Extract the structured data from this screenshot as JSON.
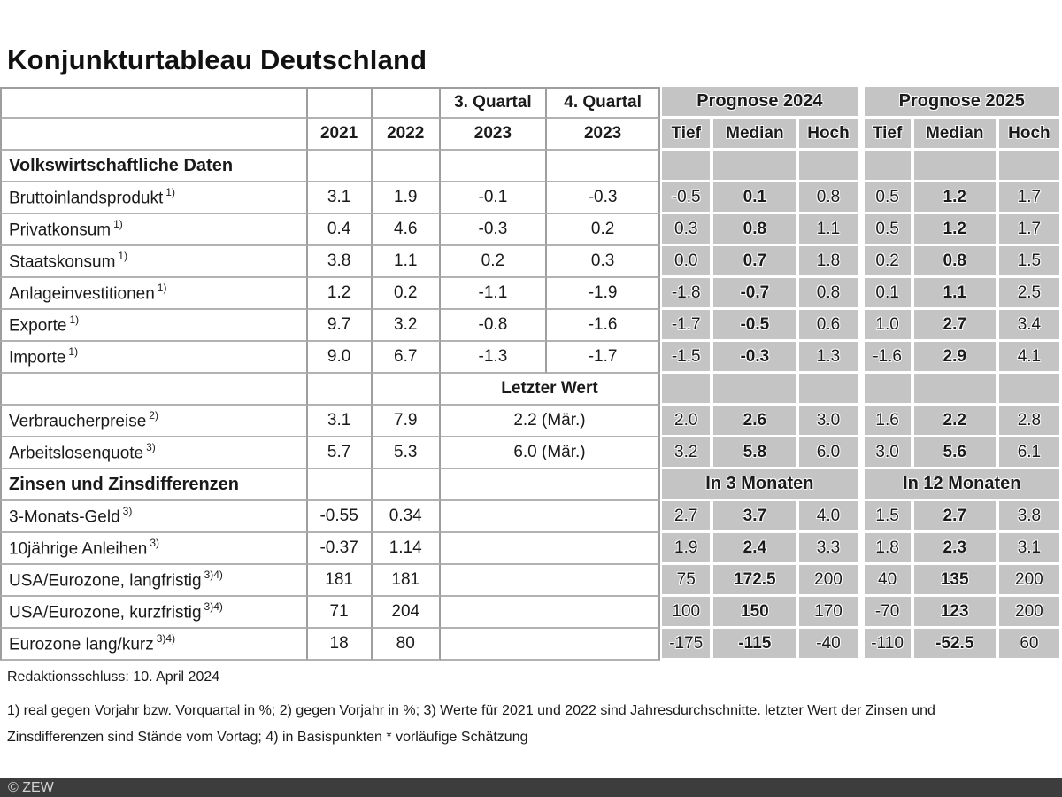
{
  "title": "Konjunkturtableau Deutschland",
  "colors": {
    "forecast_cell_gray": "#c4c4c4",
    "grid_line": "#9e9e9e",
    "copyright_bar": "#3d3d3d",
    "text": "#1a1a1a"
  },
  "chart_data": {
    "type": "table",
    "title": "Konjunkturtableau Deutschland",
    "header": {
      "q3_label": "3. Quartal",
      "q4_label": "4. Quartal",
      "q3_year": "2023",
      "q4_year": "2023",
      "y2021": "2021",
      "y2022": "2022",
      "prognose2024": "Prognose 2024",
      "prognose2025": "Prognose 2025",
      "tief": "Tief",
      "median": "Median",
      "hoch": "Hoch"
    },
    "section1": "Volkswirtschaftliche Daten",
    "vw_rows": [
      {
        "label": "Bruttoinlandsprodukt",
        "sup": "1)",
        "y2021": "3.1",
        "y2022": "1.9",
        "q3": "-0.1",
        "q4": "-0.3",
        "f24": {
          "tief": "-0.5",
          "median": "0.1",
          "hoch": "0.8"
        },
        "f25": {
          "tief": "0.5",
          "median": "1.2",
          "hoch": "1.7"
        }
      },
      {
        "label": "Privatkonsum",
        "sup": "1)",
        "y2021": "0.4",
        "y2022": "4.6",
        "q3": "-0.3",
        "q4": "0.2",
        "f24": {
          "tief": "0.3",
          "median": "0.8",
          "hoch": "1.1"
        },
        "f25": {
          "tief": "0.5",
          "median": "1.2",
          "hoch": "1.7"
        }
      },
      {
        "label": "Staatskonsum",
        "sup": "1)",
        "y2021": "3.8",
        "y2022": "1.1",
        "q3": "0.2",
        "q4": "0.3",
        "f24": {
          "tief": "0.0",
          "median": "0.7",
          "hoch": "1.8"
        },
        "f25": {
          "tief": "0.2",
          "median": "0.8",
          "hoch": "1.5"
        }
      },
      {
        "label": "Anlageinvestitionen",
        "sup": "1)",
        "y2021": "1.2",
        "y2022": "0.2",
        "q3": "-1.1",
        "q4": "-1.9",
        "f24": {
          "tief": "-1.8",
          "median": "-0.7",
          "hoch": "0.8"
        },
        "f25": {
          "tief": "0.1",
          "median": "1.1",
          "hoch": "2.5"
        }
      },
      {
        "label": "Exporte",
        "sup": "1)",
        "y2021": "9.7",
        "y2022": "3.2",
        "q3": "-0.8",
        "q4": "-1.6",
        "f24": {
          "tief": "-1.7",
          "median": "-0.5",
          "hoch": "0.6"
        },
        "f25": {
          "tief": "1.0",
          "median": "2.7",
          "hoch": "3.4"
        }
      },
      {
        "label": "Importe",
        "sup": "1)",
        "y2021": "9.0",
        "y2022": "6.7",
        "q3": "-1.3",
        "q4": "-1.7",
        "f24": {
          "tief": "-1.5",
          "median": "-0.3",
          "hoch": "1.3"
        },
        "f25": {
          "tief": "-1.6",
          "median": "2.9",
          "hoch": "4.1"
        }
      }
    ],
    "letzter_wert_label": "Letzter Wert",
    "price_rows": [
      {
        "label": "Verbraucherpreise",
        "sup": "2)",
        "y2021": "3.1",
        "y2022": "7.9",
        "last": "2.2 (Mär.)",
        "f24": {
          "tief": "2.0",
          "median": "2.6",
          "hoch": "3.0"
        },
        "f25": {
          "tief": "1.6",
          "median": "2.2",
          "hoch": "2.8"
        }
      },
      {
        "label": "Arbeitslosenquote",
        "sup": "3)",
        "y2021": "5.7",
        "y2022": "5.3",
        "last": "6.0 (Mär.)",
        "f24": {
          "tief": "3.2",
          "median": "5.8",
          "hoch": "6.0"
        },
        "f25": {
          "tief": "3.0",
          "median": "5.6",
          "hoch": "6.1"
        }
      }
    ],
    "section2": "Zinsen und Zinsdifferenzen",
    "in3_label": "In 3 Monaten",
    "in12_label": "In 12 Monaten",
    "interest_rows": [
      {
        "label": "3-Monats-Geld",
        "sup": "3)",
        "y2021": "-0.55",
        "y2022": "0.34",
        "fc3m": {
          "tief": "2.7",
          "median": "3.7",
          "hoch": "4.0"
        },
        "fc12m": {
          "tief": "1.5",
          "median": "2.7",
          "hoch": "3.8"
        }
      },
      {
        "label": "10jährige Anleihen",
        "sup": "3)",
        "y2021": "-0.37",
        "y2022": "1.14",
        "fc3m": {
          "tief": "1.9",
          "median": "2.4",
          "hoch": "3.3"
        },
        "fc12m": {
          "tief": "1.8",
          "median": "2.3",
          "hoch": "3.1"
        }
      },
      {
        "label": "USA/Eurozone, langfristig",
        "sup": "3)4)",
        "y2021": "181",
        "y2022": "181",
        "fc3m": {
          "tief": "75",
          "median": "172.5",
          "hoch": "200"
        },
        "fc12m": {
          "tief": "40",
          "median": "135",
          "hoch": "200"
        }
      },
      {
        "label": "USA/Eurozone, kurzfristig",
        "sup": "3)4)",
        "y2021": "71",
        "y2022": "204",
        "fc3m": {
          "tief": "100",
          "median": "150",
          "hoch": "170"
        },
        "fc12m": {
          "tief": "-70",
          "median": "123",
          "hoch": "200"
        }
      },
      {
        "label": "Eurozone lang/kurz",
        "sup": "3)4)",
        "y2021": "18",
        "y2022": "80",
        "fc3m": {
          "tief": "-175",
          "median": "-115",
          "hoch": "-40"
        },
        "fc12m": {
          "tief": "-110",
          "median": "-52.5",
          "hoch": "60"
        }
      }
    ]
  },
  "footer": {
    "redaktionsschluss": "Redaktionsschluss: 10. April 2024",
    "footnotes": "1) real gegen Vorjahr bzw. Vorquartal in %; 2) gegen Vorjahr in %; 3) Werte für 2021 und 2022 sind Jahresdurchschnitte. letzter Wert der Zinsen und Zinsdifferenzen sind Stände vom Vortag; 4) in Basispunkten * vorläufige Schätzung",
    "copyright": "© ZEW"
  }
}
